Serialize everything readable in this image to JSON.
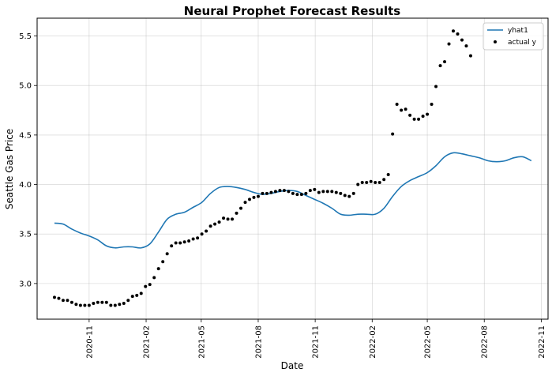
{
  "chart_data": {
    "type": "line",
    "title": "Neural Prophet Forecast Results",
    "xlabel": "Date",
    "ylabel": "Seattle Gas Price",
    "xlim": [
      "2020-08-09",
      "2022-11-12"
    ],
    "ylim": [
      2.64,
      5.68
    ],
    "x_ticks": [
      "2020-11",
      "2021-02",
      "2021-05",
      "2021-08",
      "2021-11",
      "2022-02",
      "2022-05",
      "2022-08",
      "2022-11"
    ],
    "y_ticks": [
      "3.0",
      "3.5",
      "4.0",
      "4.5",
      "5.0",
      "5.5"
    ],
    "grid": true,
    "legend_position": "top-right",
    "colors": {
      "yhat1": "#1f77b4",
      "actual": "#000000",
      "grid": "#b0b0b0"
    },
    "series": [
      {
        "name": "yhat1",
        "style": "line",
        "x": [
          "2020-09-06",
          "2020-09-20",
          "2020-10-04",
          "2020-10-18",
          "2020-11-01",
          "2020-11-15",
          "2020-11-29",
          "2020-12-13",
          "2020-12-27",
          "2021-01-10",
          "2021-01-24",
          "2021-02-07",
          "2021-02-21",
          "2021-03-07",
          "2021-03-21",
          "2021-04-04",
          "2021-04-18",
          "2021-05-02",
          "2021-05-16",
          "2021-05-30",
          "2021-06-13",
          "2021-06-27",
          "2021-07-11",
          "2021-07-25",
          "2021-08-08",
          "2021-08-22",
          "2021-09-05",
          "2021-09-19",
          "2021-10-03",
          "2021-10-17",
          "2021-10-31",
          "2021-11-14",
          "2021-11-28",
          "2021-12-12",
          "2021-12-26",
          "2022-01-09",
          "2022-01-23",
          "2022-02-06",
          "2022-02-20",
          "2022-03-06",
          "2022-03-20",
          "2022-04-03",
          "2022-04-17",
          "2022-05-01",
          "2022-05-15",
          "2022-05-29",
          "2022-06-12",
          "2022-06-26",
          "2022-07-10",
          "2022-07-24",
          "2022-08-07",
          "2022-08-21",
          "2022-09-04",
          "2022-09-18",
          "2022-10-02",
          "2022-10-16"
        ],
        "y": [
          3.61,
          3.6,
          3.55,
          3.51,
          3.48,
          3.44,
          3.38,
          3.36,
          3.37,
          3.37,
          3.36,
          3.4,
          3.52,
          3.65,
          3.7,
          3.72,
          3.77,
          3.82,
          3.91,
          3.97,
          3.98,
          3.97,
          3.95,
          3.92,
          3.9,
          3.91,
          3.93,
          3.94,
          3.93,
          3.89,
          3.85,
          3.81,
          3.76,
          3.7,
          3.69,
          3.7,
          3.7,
          3.7,
          3.76,
          3.88,
          3.98,
          4.04,
          4.08,
          4.12,
          4.19,
          4.28,
          4.32,
          4.31,
          4.29,
          4.27,
          4.24,
          4.23,
          4.24,
          4.27,
          4.28,
          4.24
        ]
      },
      {
        "name": "actual y",
        "style": "scatter",
        "x": [
          "2020-09-06",
          "2020-09-13",
          "2020-09-20",
          "2020-09-27",
          "2020-10-04",
          "2020-10-11",
          "2020-10-18",
          "2020-10-25",
          "2020-11-01",
          "2020-11-08",
          "2020-11-15",
          "2020-11-22",
          "2020-11-29",
          "2020-12-06",
          "2020-12-13",
          "2020-12-20",
          "2020-12-27",
          "2021-01-03",
          "2021-01-10",
          "2021-01-17",
          "2021-01-24",
          "2021-01-31",
          "2021-02-07",
          "2021-02-14",
          "2021-02-21",
          "2021-02-28",
          "2021-03-07",
          "2021-03-14",
          "2021-03-21",
          "2021-03-28",
          "2021-04-04",
          "2021-04-11",
          "2021-04-18",
          "2021-04-25",
          "2021-05-02",
          "2021-05-09",
          "2021-05-16",
          "2021-05-23",
          "2021-05-30",
          "2021-06-06",
          "2021-06-13",
          "2021-06-20",
          "2021-06-27",
          "2021-07-04",
          "2021-07-11",
          "2021-07-18",
          "2021-07-25",
          "2021-08-01",
          "2021-08-08",
          "2021-08-15",
          "2021-08-22",
          "2021-08-29",
          "2021-09-05",
          "2021-09-12",
          "2021-09-19",
          "2021-09-26",
          "2021-10-03",
          "2021-10-10",
          "2021-10-17",
          "2021-10-24",
          "2021-10-31",
          "2021-11-07",
          "2021-11-14",
          "2021-11-21",
          "2021-11-28",
          "2021-12-05",
          "2021-12-12",
          "2021-12-19",
          "2021-12-26",
          "2022-01-02",
          "2022-01-09",
          "2022-01-16",
          "2022-01-23",
          "2022-01-30",
          "2022-02-06",
          "2022-02-13",
          "2022-02-20",
          "2022-02-27",
          "2022-03-06",
          "2022-03-13",
          "2022-03-20",
          "2022-03-27",
          "2022-04-03",
          "2022-04-10",
          "2022-04-17",
          "2022-04-24",
          "2022-05-01",
          "2022-05-08",
          "2022-05-15",
          "2022-05-22",
          "2022-05-29",
          "2022-06-05",
          "2022-06-12",
          "2022-06-19",
          "2022-06-26",
          "2022-07-03",
          "2022-07-10"
        ],
        "y": [
          2.86,
          2.85,
          2.83,
          2.83,
          2.81,
          2.79,
          2.78,
          2.78,
          2.78,
          2.8,
          2.81,
          2.81,
          2.81,
          2.78,
          2.78,
          2.79,
          2.8,
          2.83,
          2.87,
          2.88,
          2.9,
          2.97,
          2.99,
          3.06,
          3.15,
          3.22,
          3.3,
          3.38,
          3.41,
          3.41,
          3.42,
          3.43,
          3.45,
          3.46,
          3.5,
          3.53,
          3.58,
          3.6,
          3.62,
          3.66,
          3.65,
          3.65,
          3.71,
          3.76,
          3.82,
          3.85,
          3.87,
          3.88,
          3.91,
          3.91,
          3.92,
          3.93,
          3.94,
          3.94,
          3.93,
          3.91,
          3.9,
          3.9,
          3.91,
          3.94,
          3.95,
          3.92,
          3.93,
          3.93,
          3.93,
          3.92,
          3.91,
          3.89,
          3.88,
          3.91,
          4.0,
          4.02,
          4.02,
          4.03,
          4.02,
          4.02,
          4.05,
          4.1,
          4.51,
          4.81,
          4.75,
          4.76,
          4.7,
          4.66,
          4.66,
          4.69,
          4.71,
          4.81,
          4.99,
          5.2,
          5.24,
          5.42,
          5.55,
          5.52,
          5.46,
          5.4,
          5.3
        ]
      }
    ]
  }
}
